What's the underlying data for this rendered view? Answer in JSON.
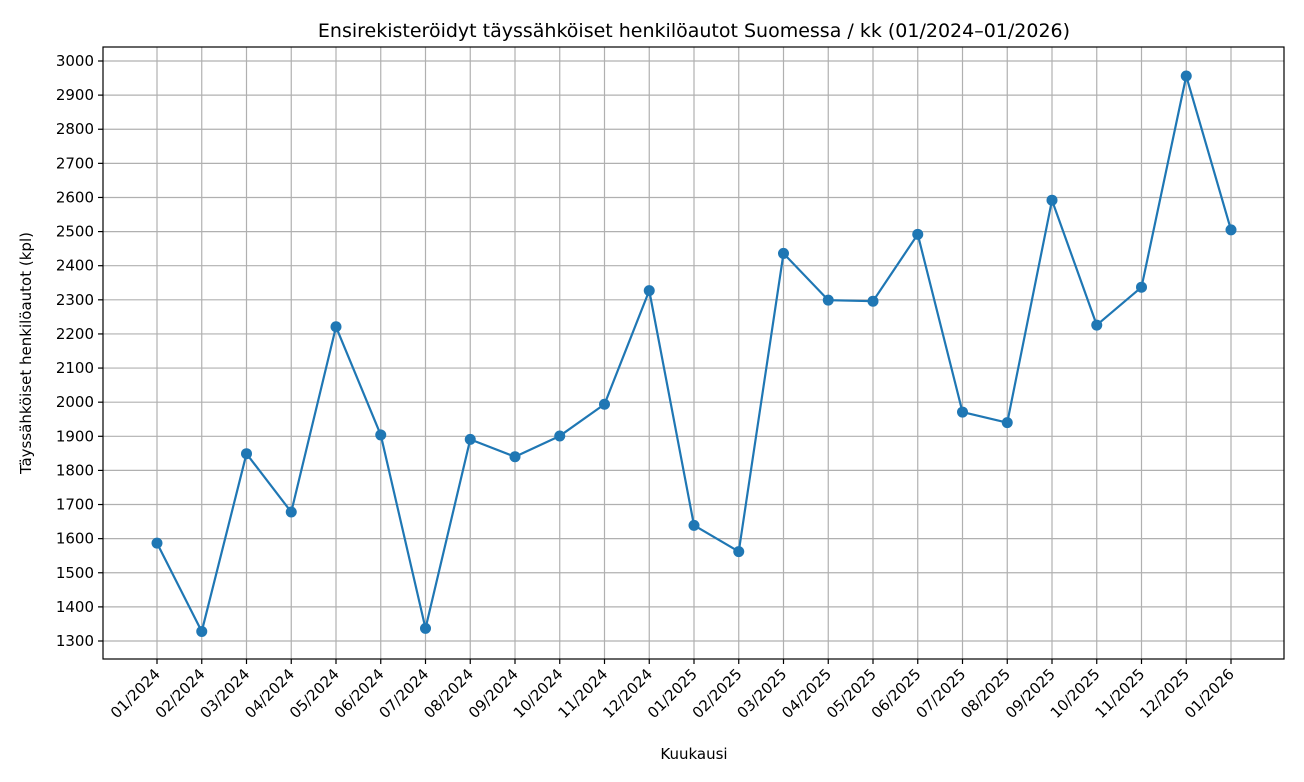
{
  "chart_data": {
    "type": "line",
    "title": "Ensirekisteröidyt täyssähköiset henkilöautot Suomessa / kk (01/2024–01/2026)",
    "xlabel": "Kuukausi",
    "ylabel": "Täyssähköiset henkilöautot (kpl)",
    "categories": [
      "01/2024",
      "02/2024",
      "03/2024",
      "04/2024",
      "05/2024",
      "06/2024",
      "07/2024",
      "08/2024",
      "09/2024",
      "10/2024",
      "11/2024",
      "12/2024",
      "01/2025",
      "02/2025",
      "03/2025",
      "04/2025",
      "05/2025",
      "06/2025",
      "07/2025",
      "08/2025",
      "09/2025",
      "10/2025",
      "11/2025",
      "12/2025",
      "01/2026"
    ],
    "series": [
      {
        "name": "Täyssähköiset henkilöautot",
        "color": "#1f77b4",
        "marker": "circle",
        "values": [
          1587,
          1328,
          1849,
          1678,
          2221,
          1904,
          1337,
          1891,
          1840,
          1901,
          1994,
          2327,
          1639,
          1562,
          2436,
          2299,
          2296,
          2492,
          1971,
          1940,
          2592,
          2226,
          2337,
          2956,
          2505
        ]
      }
    ],
    "yticks": [
      1300,
      1400,
      1500,
      1600,
      1700,
      1800,
      1900,
      2000,
      2100,
      2200,
      2300,
      2400,
      2500,
      2600,
      2700,
      2800,
      2900,
      3000
    ],
    "ylim": [
      1250,
      3040
    ],
    "grid": true,
    "legend": null
  }
}
